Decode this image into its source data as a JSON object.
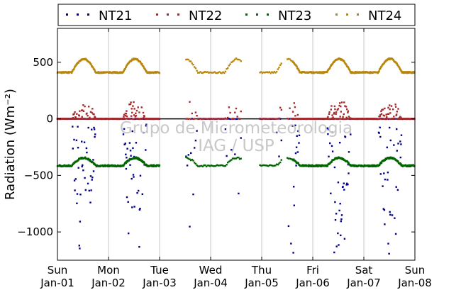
{
  "chart_data": {
    "type": "scatter",
    "ylabel": "Radiation (Wm⁻²)",
    "ylim": [
      -1250,
      800
    ],
    "yticks": [
      -1000,
      -500,
      0,
      500
    ],
    "ytick_labels": [
      "−1000",
      "−500",
      "0",
      "500"
    ],
    "xlim": [
      0,
      7
    ],
    "xticks": [
      {
        "value": 0,
        "day": "Sun",
        "date": "Jan-01"
      },
      {
        "value": 1,
        "day": "Mon",
        "date": "Jan-02"
      },
      {
        "value": 2,
        "day": "Tue",
        "date": "Jan-03"
      },
      {
        "value": 3,
        "day": "Wed",
        "date": "Jan-04"
      },
      {
        "value": 4,
        "day": "Thu",
        "date": "Jan-05"
      },
      {
        "value": 5,
        "day": "Fri",
        "date": "Jan-06"
      },
      {
        "value": 6,
        "day": "Sat",
        "date": "Jan-07"
      },
      {
        "value": 7,
        "day": "Sun",
        "date": "Jan-08"
      }
    ],
    "grid": "vertical",
    "legend_placement": "top",
    "watermark": [
      "Grupo de Micrometeorologia",
      "IAG / USP"
    ],
    "series": [
      {
        "name": "NT21",
        "color": "#00008b"
      },
      {
        "name": "NT22",
        "color": "#a52a2a"
      },
      {
        "name": "NT23",
        "color": "#006400"
      },
      {
        "name": "NT24",
        "color": "#b8860b"
      }
    ],
    "gaps": [
      [
        2.0,
        2.5
      ],
      [
        3.6,
        3.95
      ],
      [
        4.4,
        4.5
      ]
    ]
  }
}
